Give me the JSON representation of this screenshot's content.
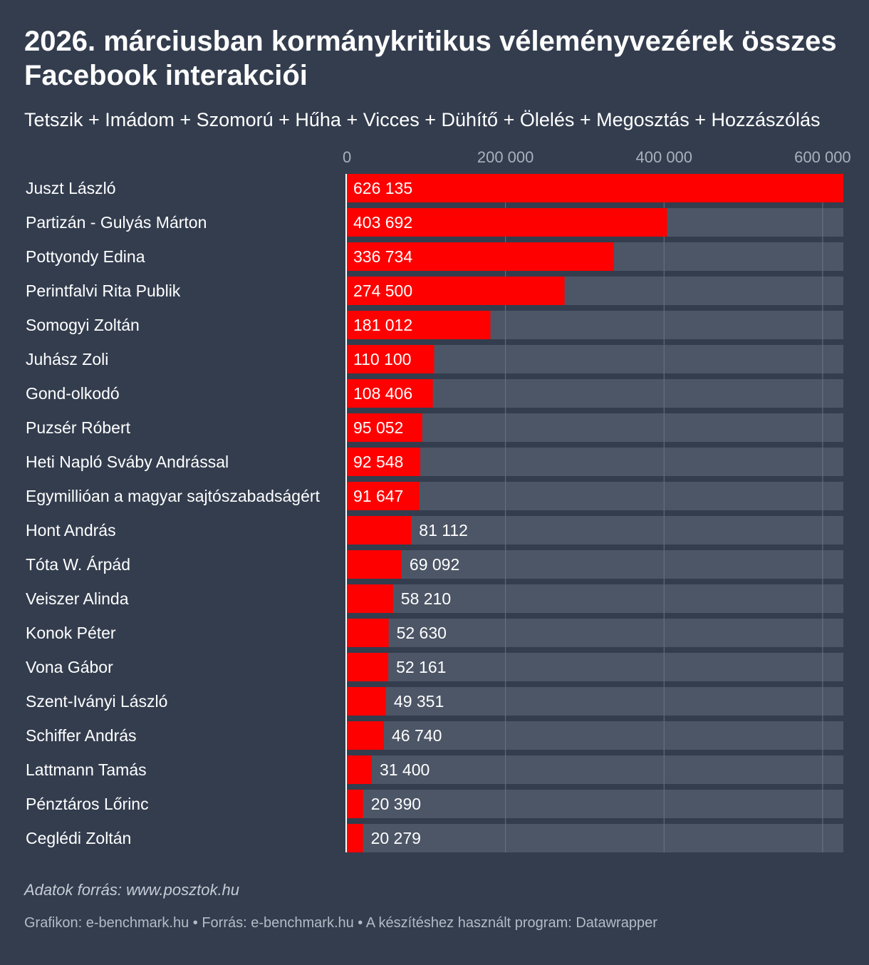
{
  "header": {
    "title": "2026. márciusban kormánykritikus véleményvezérek összes Facebook interakciói",
    "subtitle": "Tetszik + Imádom + Szomorú + Hűha + Vicces + Dühítő + Ölelés + Megosztás + Hozzászólás"
  },
  "chart_data": {
    "type": "bar",
    "orientation": "horizontal",
    "title": "2026. márciusban kormánykritikus véleményvezérek összes Facebook interakciói",
    "xlabel": "",
    "ylabel": "",
    "xlim": [
      0,
      626135
    ],
    "ticks": [
      0,
      200000,
      400000,
      600000
    ],
    "tick_labels": [
      "0",
      "200 000",
      "400 000",
      "600 000"
    ],
    "grid": true,
    "categories": [
      "Juszt László",
      "Partizán - Gulyás Márton",
      "Pottyondy Edina",
      "Perintfalvi Rita Publik",
      "Somogyi Zoltán",
      "Juhász Zoli",
      "Gond-olkodó",
      "Puzsér Róbert",
      "Heti Napló Sváby Andrással",
      "Egymillióan a magyar sajtószabadságért",
      "Hont András",
      "Tóta W. Árpád",
      "Veiszer Alinda",
      "Konok Péter",
      "Vona Gábor",
      "Szent-Iványi László",
      "Schiffer András",
      "Lattmann Tamás",
      "Pénztáros Lőrinc",
      "Ceglédi Zoltán"
    ],
    "values": [
      626135,
      403692,
      336734,
      274500,
      181012,
      110100,
      108406,
      95052,
      92548,
      91647,
      81112,
      69092,
      58210,
      52630,
      52161,
      49351,
      46740,
      31400,
      20390,
      20279
    ],
    "value_labels": [
      "626 135",
      "403 692",
      "336 734",
      "274 500",
      "181 012",
      "110 100",
      "108 406",
      "95 052",
      "92 548",
      "91 647",
      "81 112",
      "69 092",
      "58 210",
      "52 630",
      "52 161",
      "49 351",
      "46 740",
      "31 400",
      "20 390",
      "20 279"
    ],
    "colors": {
      "bar": "#ff0000",
      "track": "#4d5666",
      "grid": "#6b7383",
      "tick_text": "#aab1bd",
      "label_text": "#ffffff"
    }
  },
  "footer": {
    "data_source": "Adatok forrás: www.posztok.hu",
    "credits": "Grafikon: e-benchmark.hu • Forrás: e-benchmark.hu • A készítéshez használt program: Datawrapper"
  }
}
